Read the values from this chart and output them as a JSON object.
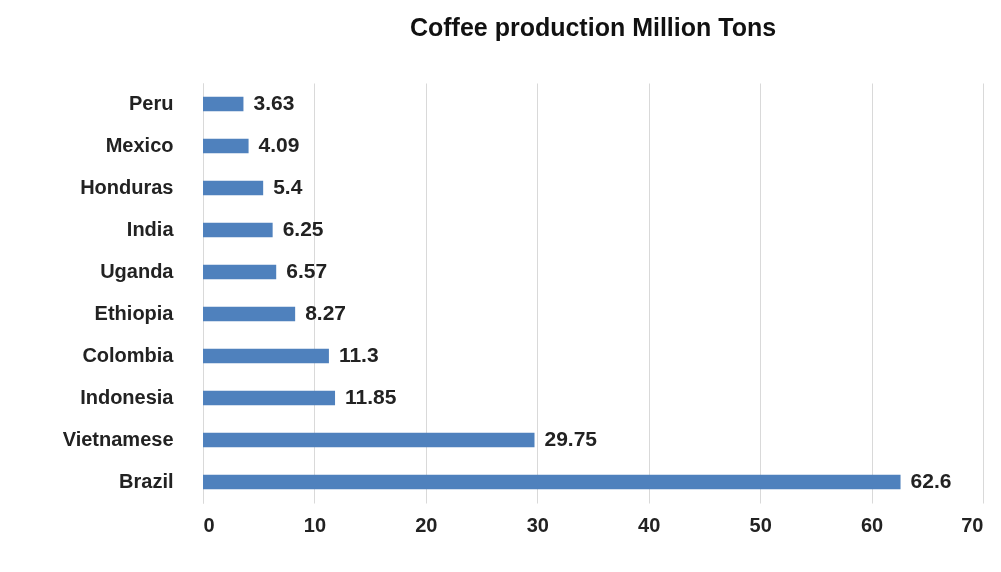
{
  "chart_data": {
    "type": "bar",
    "orientation": "horizontal",
    "title": "Coffee production Million Tons",
    "categories": [
      "Peru",
      "Mexico",
      "Honduras",
      "India",
      "Uganda",
      "Ethiopia",
      "Colombia",
      "Indonesia",
      "Vietnamese",
      "Brazil"
    ],
    "values": [
      3.63,
      4.09,
      5.4,
      6.25,
      6.57,
      8.27,
      11.3,
      11.85,
      29.75,
      62.6
    ],
    "color": "#4f81bd",
    "xlim": [
      0,
      70
    ],
    "xticks": [
      0,
      10,
      20,
      30,
      40,
      50,
      60,
      70
    ],
    "grid": "x",
    "data_labels": true
  }
}
